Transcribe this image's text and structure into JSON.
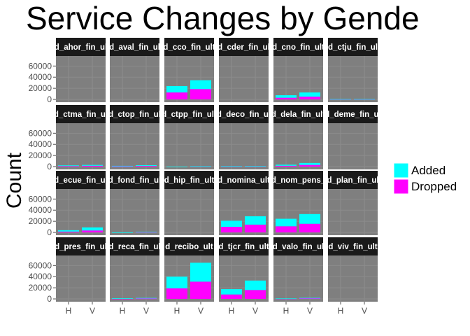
{
  "chart_data": {
    "type": "bar",
    "stacked": true,
    "title": "Service Changes by Gende",
    "xlabel": "",
    "ylabel": "Count",
    "x_categories": [
      "H",
      "V"
    ],
    "y_ticks": [
      0,
      20000,
      40000,
      60000
    ],
    "y_tick_labels": [
      "0",
      "20000",
      "40000",
      "60000"
    ],
    "ylim": [
      -5000,
      78000
    ],
    "grid": true,
    "legend_position": "right",
    "legend_title": "",
    "colors": {
      "Added": "#00ffff",
      "Dropped": "#ff00ff",
      "panel_bg": "#7f7f7f",
      "strip_bg": "#1a1a1a",
      "grid": "#8c8c8c"
    },
    "series_order": [
      "Dropped",
      "Added"
    ],
    "legend": [
      {
        "name": "Added",
        "color": "#00ffff"
      },
      {
        "name": "Dropped",
        "color": "#ff00ff"
      }
    ],
    "facets": [
      {
        "label": "d_ahor_fin_ul",
        "values": {
          "H": {
            "Dropped": 0,
            "Added": 0
          },
          "V": {
            "Dropped": 0,
            "Added": 0
          }
        }
      },
      {
        "label": "d_aval_fin_ul",
        "values": {
          "H": {
            "Dropped": 0,
            "Added": 0
          },
          "V": {
            "Dropped": 0,
            "Added": 0
          }
        }
      },
      {
        "label": "d_cco_fin_ult",
        "values": {
          "H": {
            "Dropped": 12500,
            "Added": 11500
          },
          "V": {
            "Dropped": 18500,
            "Added": 16000
          }
        }
      },
      {
        "label": "d_cder_fin_ul",
        "values": {
          "H": {
            "Dropped": 0,
            "Added": 0
          },
          "V": {
            "Dropped": 0,
            "Added": 0
          }
        }
      },
      {
        "label": "d_cno_fin_ult",
        "values": {
          "H": {
            "Dropped": 3000,
            "Added": 4500
          },
          "V": {
            "Dropped": 5000,
            "Added": 7500
          }
        }
      },
      {
        "label": "d_ctju_fin_ul",
        "values": {
          "H": {
            "Dropped": 400,
            "Added": 300
          },
          "V": {
            "Dropped": 400,
            "Added": 300
          }
        }
      },
      {
        "label": "d_ctma_fin_ul",
        "values": {
          "H": {
            "Dropped": 1000,
            "Added": 1200
          },
          "V": {
            "Dropped": 1500,
            "Added": 1500
          }
        }
      },
      {
        "label": "d_ctop_fin_ul",
        "values": {
          "H": {
            "Dropped": 600,
            "Added": 800
          },
          "V": {
            "Dropped": 1200,
            "Added": 1300
          }
        }
      },
      {
        "label": "d_ctpp_fin_ult",
        "values": {
          "H": {
            "Dropped": 0,
            "Added": 100
          },
          "V": {
            "Dropped": 400,
            "Added": 300
          }
        }
      },
      {
        "label": "d_deco_fin_ul",
        "values": {
          "H": {
            "Dropped": 400,
            "Added": 400
          },
          "V": {
            "Dropped": 500,
            "Added": 400
          }
        }
      },
      {
        "label": "d_dela_fin_ult",
        "values": {
          "H": {
            "Dropped": 1500,
            "Added": 2000
          },
          "V": {
            "Dropped": 3000,
            "Added": 3500
          }
        }
      },
      {
        "label": "d_deme_fin_ul",
        "values": {
          "H": {
            "Dropped": 0,
            "Added": 0
          },
          "V": {
            "Dropped": 0,
            "Added": 0
          }
        }
      },
      {
        "label": "d_ecue_fin_ul",
        "values": {
          "H": {
            "Dropped": 1500,
            "Added": 2500
          },
          "V": {
            "Dropped": 3500,
            "Added": 5500
          }
        }
      },
      {
        "label": "d_fond_fin_ul",
        "values": {
          "H": {
            "Dropped": 0,
            "Added": 100
          },
          "V": {
            "Dropped": 700,
            "Added": 500
          }
        }
      },
      {
        "label": "d_hip_fin_ult",
        "values": {
          "H": {
            "Dropped": 0,
            "Added": 0
          },
          "V": {
            "Dropped": 0,
            "Added": 0
          }
        }
      },
      {
        "label": "d_nomina_ult",
        "values": {
          "H": {
            "Dropped": 10000,
            "Added": 11000
          },
          "V": {
            "Dropped": 14000,
            "Added": 15000
          }
        }
      },
      {
        "label": "d_nom_pens_",
        "values": {
          "H": {
            "Dropped": 11000,
            "Added": 13500
          },
          "V": {
            "Dropped": 15500,
            "Added": 17500
          }
        }
      },
      {
        "label": "d_plan_fin_ul",
        "values": {
          "H": {
            "Dropped": 0,
            "Added": 0
          },
          "V": {
            "Dropped": 0,
            "Added": 0
          }
        }
      },
      {
        "label": "d_pres_fin_ul",
        "values": {
          "H": {
            "Dropped": 0,
            "Added": 0
          },
          "V": {
            "Dropped": 0,
            "Added": 0
          }
        }
      },
      {
        "label": "d_reca_fin_ul",
        "values": {
          "H": {
            "Dropped": 400,
            "Added": 600
          },
          "V": {
            "Dropped": 800,
            "Added": 1000
          }
        }
      },
      {
        "label": "d_recibo_ult",
        "values": {
          "H": {
            "Dropped": 19000,
            "Added": 21000
          },
          "V": {
            "Dropped": 31000,
            "Added": 34000
          }
        }
      },
      {
        "label": "d_tjcr_fin_ult",
        "values": {
          "H": {
            "Dropped": 8000,
            "Added": 9500
          },
          "V": {
            "Dropped": 16000,
            "Added": 17000
          }
        }
      },
      {
        "label": "d_valo_fin_ul",
        "values": {
          "H": {
            "Dropped": 400,
            "Added": 400
          },
          "V": {
            "Dropped": 1200,
            "Added": 700
          }
        }
      },
      {
        "label": "d_viv_fin_ult",
        "values": {
          "H": {
            "Dropped": 0,
            "Added": 0
          },
          "V": {
            "Dropped": 0,
            "Added": 0
          }
        }
      }
    ]
  }
}
